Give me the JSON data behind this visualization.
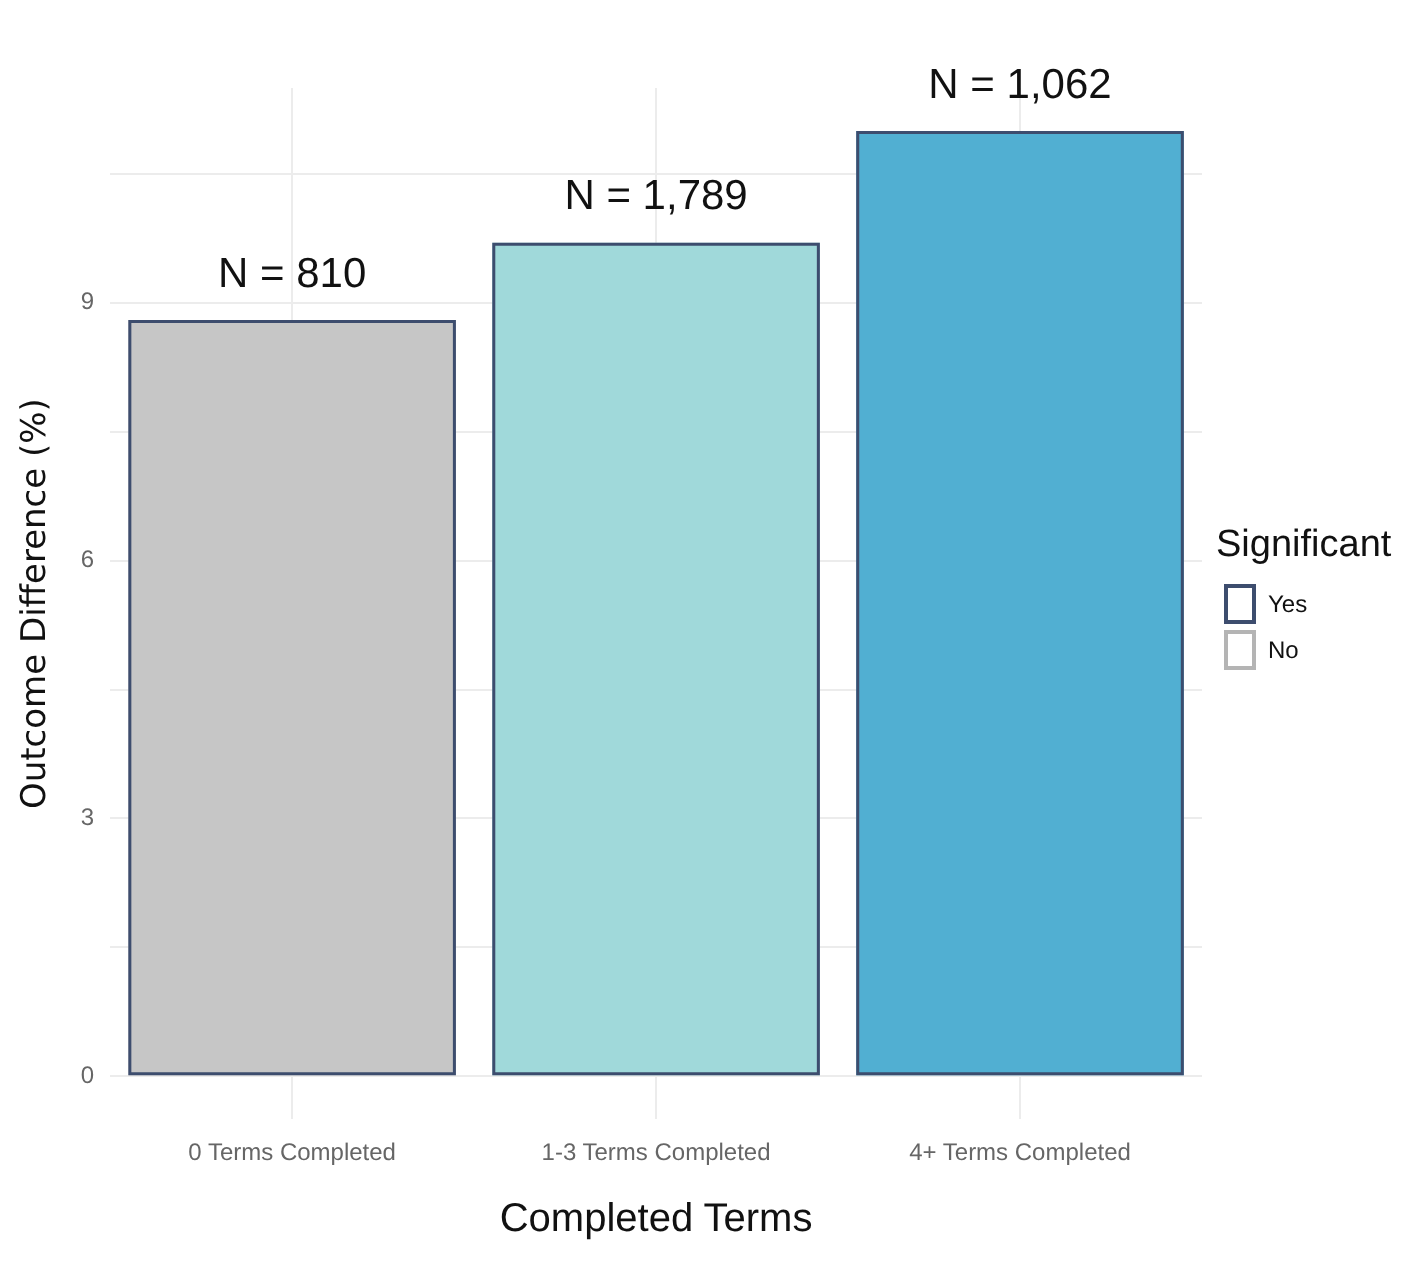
{
  "chart_data": {
    "type": "bar",
    "xlabel": "Completed Terms",
    "ylabel": "Outcome Difference (%)",
    "legend_title": "Significant",
    "categories": [
      "0 Terms Completed",
      "1-3 Terms Completed",
      "4+ Terms Completed"
    ],
    "series": [
      {
        "name": "Yes",
        "color": "#3d4d6e",
        "colors": [
          "#c6c6c6",
          "#a0d9da",
          "#51afd2"
        ],
        "values": [
          8.8,
          9.7,
          11.0
        ]
      },
      {
        "name": "No",
        "color": "#b4b4b4",
        "values": [
          null,
          null,
          null
        ]
      }
    ],
    "annotations": [
      {
        "text": "N = 810",
        "x": "0 Terms Completed",
        "y": 8.8
      },
      {
        "text": "N = 1,789",
        "x": "1-3 Terms Completed",
        "y": 9.7
      },
      {
        "text": "N = 1,062",
        "x": "4+ Terms Completed",
        "y": 11.0
      }
    ],
    "ylim": [
      -0.5,
      11.5
    ],
    "yticks": [
      0,
      {
        "value": 1.5,
        "label": null
      },
      3,
      {
        "value": 4.5,
        "label": null
      },
      6,
      {
        "value": 7.5,
        "label": null
      },
      9,
      {
        "value": 10.5,
        "label": null
      }
    ],
    "grid": true,
    "legend": "right"
  }
}
